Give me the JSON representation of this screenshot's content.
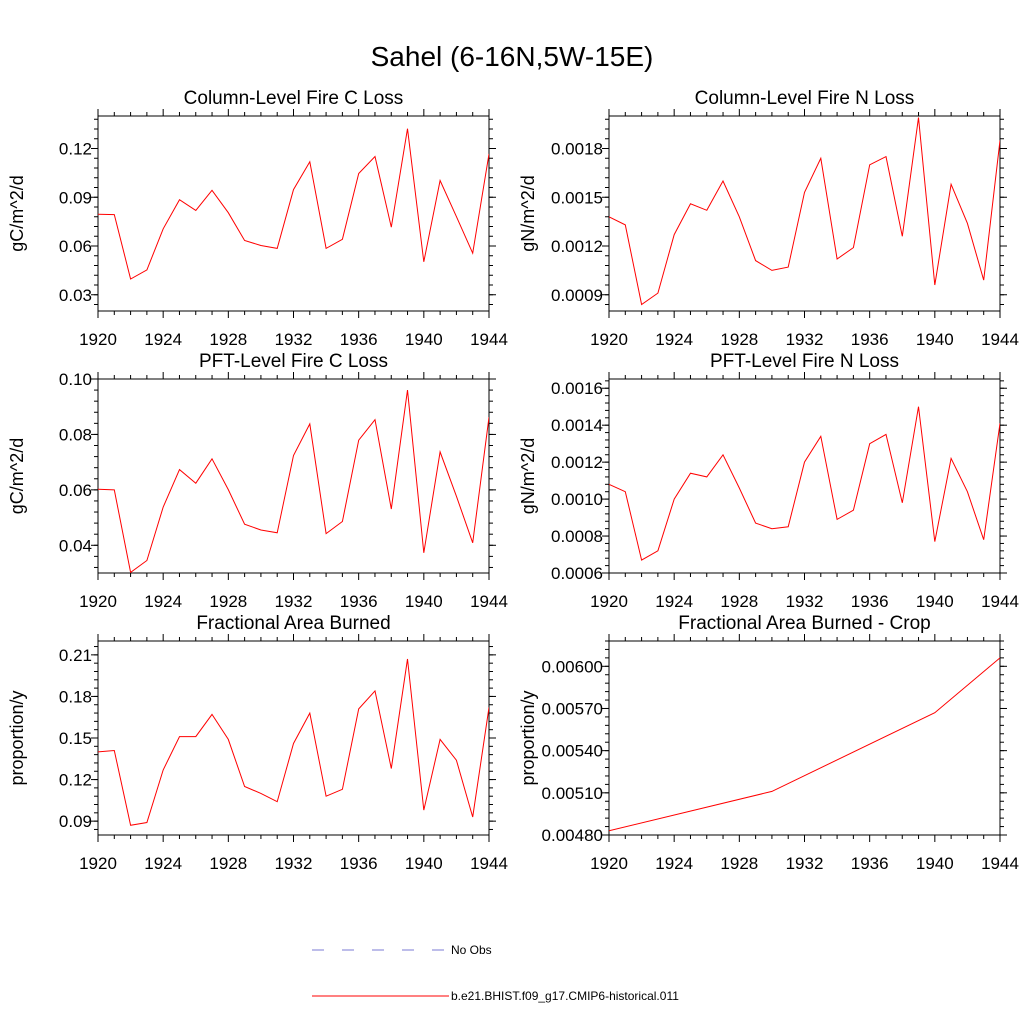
{
  "figure": {
    "title": "Sahel (6-16N,5W-15E)",
    "series_color": "#ff0000",
    "obs_color": "#7b7bd6",
    "legend": [
      {
        "label": "No Obs",
        "style": "dashed",
        "color": "#7b7bd6"
      },
      {
        "label": "b.e21.BHIST.f09_g17.CMIP6-historical.011",
        "style": "solid",
        "color": "#ff0000"
      }
    ]
  },
  "chart_data": [
    {
      "type": "line",
      "title": "Column-Level Fire C Loss",
      "ylabel": "gC/m^2/d",
      "xlim": [
        1920,
        1944
      ],
      "ylim": [
        0.02,
        0.14
      ],
      "xticks": [
        1920,
        1924,
        1928,
        1932,
        1936,
        1940,
        1944
      ],
      "xtick_labels": [
        "1920",
        "1924",
        "1928",
        "1932",
        "1936",
        "1940",
        "1944"
      ],
      "yticks": [
        0.03,
        0.06,
        0.09,
        0.12
      ],
      "ytick_labels": [
        "0.03",
        "0.06",
        "0.09",
        "0.12"
      ],
      "x": [
        1920,
        1921,
        1922,
        1923,
        1924,
        1925,
        1926,
        1927,
        1928,
        1929,
        1930,
        1931,
        1932,
        1933,
        1934,
        1935,
        1936,
        1937,
        1938,
        1939,
        1940,
        1941,
        1942,
        1943,
        1944
      ],
      "series": [
        {
          "values": [
            0.0795,
            0.0793,
            0.0397,
            0.0453,
            0.0706,
            0.0885,
            0.0819,
            0.0943,
            0.0805,
            0.0634,
            0.0603,
            0.0585,
            0.0947,
            0.1118,
            0.0585,
            0.0641,
            0.1046,
            0.1151,
            0.0716,
            0.1322,
            0.0503,
            0.1003,
            0.0781,
            0.0556,
            0.1167
          ]
        }
      ]
    },
    {
      "type": "line",
      "title": "Column-Level Fire N Loss",
      "ylabel": "gN/m^2/d",
      "xlim": [
        1920,
        1944
      ],
      "ylim": [
        0.0008,
        0.002
      ],
      "xticks": [
        1920,
        1924,
        1928,
        1932,
        1936,
        1940,
        1944
      ],
      "xtick_labels": [
        "1920",
        "1924",
        "1928",
        "1932",
        "1936",
        "1940",
        "1944"
      ],
      "yticks": [
        0.0009,
        0.0012,
        0.0015,
        0.0018
      ],
      "ytick_labels": [
        "0.0009",
        "0.0012",
        "0.0015",
        "0.0018"
      ],
      "x": [
        1920,
        1921,
        1922,
        1923,
        1924,
        1925,
        1926,
        1927,
        1928,
        1929,
        1930,
        1931,
        1932,
        1933,
        1934,
        1935,
        1936,
        1937,
        1938,
        1939,
        1940,
        1941,
        1942,
        1943,
        1944
      ],
      "series": [
        {
          "values": [
            0.00138,
            0.00133,
            0.00084,
            0.00091,
            0.00127,
            0.00146,
            0.00142,
            0.0016,
            0.00138,
            0.00111,
            0.00105,
            0.00107,
            0.00153,
            0.00174,
            0.00112,
            0.00119,
            0.0017,
            0.00175,
            0.00126,
            0.00199,
            0.00096,
            0.00158,
            0.00134,
            0.00099,
            0.00185
          ]
        }
      ]
    },
    {
      "type": "line",
      "title": "PFT-Level Fire C Loss",
      "ylabel": "gC/m^2/d",
      "xlim": [
        1920,
        1944
      ],
      "ylim": [
        0.03,
        0.1
      ],
      "xticks": [
        1920,
        1924,
        1928,
        1932,
        1936,
        1940,
        1944
      ],
      "xtick_labels": [
        "1920",
        "1924",
        "1928",
        "1932",
        "1936",
        "1940",
        "1944"
      ],
      "yticks": [
        0.04,
        0.06,
        0.08,
        0.1
      ],
      "ytick_labels": [
        "0.04",
        "0.06",
        "0.08",
        "0.10"
      ],
      "x": [
        1920,
        1921,
        1922,
        1923,
        1924,
        1925,
        1926,
        1927,
        1928,
        1929,
        1930,
        1931,
        1932,
        1933,
        1934,
        1935,
        1936,
        1937,
        1938,
        1939,
        1940,
        1941,
        1942,
        1943,
        1944
      ],
      "series": [
        {
          "values": [
            0.0602,
            0.06,
            0.0302,
            0.0345,
            0.0538,
            0.0673,
            0.0624,
            0.0712,
            0.0601,
            0.0476,
            0.0455,
            0.0445,
            0.0724,
            0.0838,
            0.0442,
            0.0486,
            0.0779,
            0.0853,
            0.0531,
            0.096,
            0.0373,
            0.0737,
            0.0577,
            0.0409,
            0.0862
          ]
        }
      ]
    },
    {
      "type": "line",
      "title": "PFT-Level Fire N Loss",
      "ylabel": "gN/m^2/d",
      "xlim": [
        1920,
        1944
      ],
      "ylim": [
        0.0006,
        0.00165
      ],
      "xticks": [
        1920,
        1924,
        1928,
        1932,
        1936,
        1940,
        1944
      ],
      "xtick_labels": [
        "1920",
        "1924",
        "1928",
        "1932",
        "1936",
        "1940",
        "1944"
      ],
      "yticks": [
        0.0006,
        0.0008,
        0.001,
        0.0012,
        0.0014,
        0.0016
      ],
      "ytick_labels": [
        "0.0006",
        "0.0008",
        "0.0010",
        "0.0012",
        "0.0014",
        "0.0016"
      ],
      "x": [
        1920,
        1921,
        1922,
        1923,
        1924,
        1925,
        1926,
        1927,
        1928,
        1929,
        1930,
        1931,
        1932,
        1933,
        1934,
        1935,
        1936,
        1937,
        1938,
        1939,
        1940,
        1941,
        1942,
        1943,
        1944
      ],
      "series": [
        {
          "values": [
            0.00108,
            0.00104,
            0.00067,
            0.00072,
            0.001,
            0.00114,
            0.00112,
            0.00124,
            0.00106,
            0.00087,
            0.00084,
            0.00085,
            0.0012,
            0.00134,
            0.00089,
            0.00094,
            0.0013,
            0.00135,
            0.00098,
            0.0015,
            0.00077,
            0.00122,
            0.00104,
            0.00078,
            0.00141
          ]
        }
      ]
    },
    {
      "type": "line",
      "title": "Fractional Area Burned",
      "ylabel": "proportion/y",
      "xlim": [
        1920,
        1944
      ],
      "ylim": [
        0.08,
        0.22
      ],
      "xticks": [
        1920,
        1924,
        1928,
        1932,
        1936,
        1940,
        1944
      ],
      "xtick_labels": [
        "1920",
        "1924",
        "1928",
        "1932",
        "1936",
        "1940",
        "1944"
      ],
      "yticks": [
        0.09,
        0.12,
        0.15,
        0.18,
        0.21
      ],
      "ytick_labels": [
        "0.09",
        "0.12",
        "0.15",
        "0.18",
        "0.21"
      ],
      "x": [
        1920,
        1921,
        1922,
        1923,
        1924,
        1925,
        1926,
        1927,
        1928,
        1929,
        1930,
        1931,
        1932,
        1933,
        1934,
        1935,
        1936,
        1937,
        1938,
        1939,
        1940,
        1941,
        1942,
        1943,
        1944
      ],
      "series": [
        {
          "values": [
            0.14,
            0.141,
            0.087,
            0.089,
            0.127,
            0.151,
            0.151,
            0.167,
            0.149,
            0.115,
            0.11,
            0.104,
            0.146,
            0.168,
            0.108,
            0.113,
            0.171,
            0.184,
            0.128,
            0.207,
            0.098,
            0.149,
            0.134,
            0.093,
            0.172
          ]
        }
      ]
    },
    {
      "type": "line",
      "title": "Fractional Area Burned - Crop",
      "ylabel": "proportion/y",
      "xlim": [
        1920,
        1944
      ],
      "ylim": [
        0.0048,
        0.00618
      ],
      "xticks": [
        1920,
        1924,
        1928,
        1932,
        1936,
        1940,
        1944
      ],
      "xtick_labels": [
        "1920",
        "1924",
        "1928",
        "1932",
        "1936",
        "1940",
        "1944"
      ],
      "yticks": [
        0.0048,
        0.0051,
        0.0054,
        0.0057,
        0.006
      ],
      "ytick_labels": [
        "0.00480",
        "0.00510",
        "0.00540",
        "0.00570",
        "0.00600"
      ],
      "x": [
        1920,
        1930,
        1940,
        1944
      ],
      "series": [
        {
          "values": [
            0.00483,
            0.00511,
            0.00567,
            0.00606
          ]
        }
      ]
    }
  ]
}
